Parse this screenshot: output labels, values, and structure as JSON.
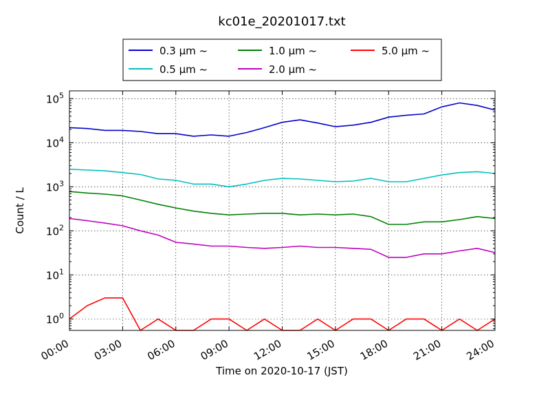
{
  "chart_data": {
    "type": "line",
    "title": "kc01e_20201017.txt",
    "xlabel": "Time on 2020-10-17 (JST)",
    "ylabel": "Count / L",
    "y_scale": "log",
    "ylim": [
      0.55,
      150000
    ],
    "xlim": [
      "00:00",
      "24:00"
    ],
    "x_ticks": [
      "00:00",
      "03:00",
      "06:00",
      "09:00",
      "12:00",
      "15:00",
      "18:00",
      "21:00",
      "24:00"
    ],
    "y_ticks": [
      {
        "value": 1,
        "base": "10",
        "exp": "0"
      },
      {
        "value": 10,
        "base": "10",
        "exp": "1"
      },
      {
        "value": 100,
        "base": "10",
        "exp": "2"
      },
      {
        "value": 1000,
        "base": "10",
        "exp": "3"
      },
      {
        "value": 10000,
        "base": "10",
        "exp": "4"
      },
      {
        "value": 100000,
        "base": "10",
        "exp": "5"
      }
    ],
    "grid": true,
    "legend": {
      "position": "top-center",
      "columns": 3
    },
    "x": [
      "00:00",
      "01:00",
      "02:00",
      "03:00",
      "04:00",
      "05:00",
      "06:00",
      "07:00",
      "08:00",
      "09:00",
      "10:00",
      "11:00",
      "12:00",
      "13:00",
      "14:00",
      "15:00",
      "16:00",
      "17:00",
      "18:00",
      "19:00",
      "20:00",
      "21:00",
      "22:00",
      "23:00",
      "24:00"
    ],
    "series": [
      {
        "name": "0.3 μm  ~",
        "color": "#0000cc",
        "values": [
          22000,
          21000,
          19000,
          19000,
          18000,
          16000,
          16000,
          14000,
          15000,
          14000,
          17000,
          22000,
          29000,
          33000,
          28000,
          23000,
          25000,
          29000,
          38000,
          42000,
          45000,
          65000,
          80000,
          70000,
          55000
        ]
      },
      {
        "name": "0.5 μm  ~",
        "color": "#00bfbf",
        "values": [
          2500,
          2400,
          2300,
          2100,
          1900,
          1500,
          1400,
          1150,
          1150,
          1000,
          1150,
          1400,
          1550,
          1500,
          1400,
          1300,
          1350,
          1550,
          1300,
          1300,
          1550,
          1850,
          2100,
          2200,
          2000
        ]
      },
      {
        "name": "1.0 μm  ~",
        "color": "#008000",
        "values": [
          780,
          720,
          680,
          620,
          500,
          400,
          330,
          280,
          250,
          230,
          240,
          250,
          250,
          230,
          240,
          230,
          240,
          210,
          140,
          140,
          160,
          160,
          180,
          210,
          190
        ]
      },
      {
        "name": "2.0 μm  ~",
        "color": "#bf00bf",
        "values": [
          190,
          170,
          150,
          130,
          100,
          80,
          55,
          50,
          45,
          45,
          42,
          40,
          42,
          45,
          42,
          42,
          40,
          38,
          25,
          25,
          30,
          30,
          35,
          40,
          32
        ]
      },
      {
        "name": "5.0 μm  ~",
        "color": "#ff0000",
        "values": [
          1,
          2,
          3,
          3,
          0,
          1,
          0,
          0,
          1,
          1,
          0,
          1,
          0,
          0,
          1,
          0,
          1,
          1,
          0,
          1,
          1,
          0,
          1,
          0,
          1
        ]
      }
    ]
  }
}
